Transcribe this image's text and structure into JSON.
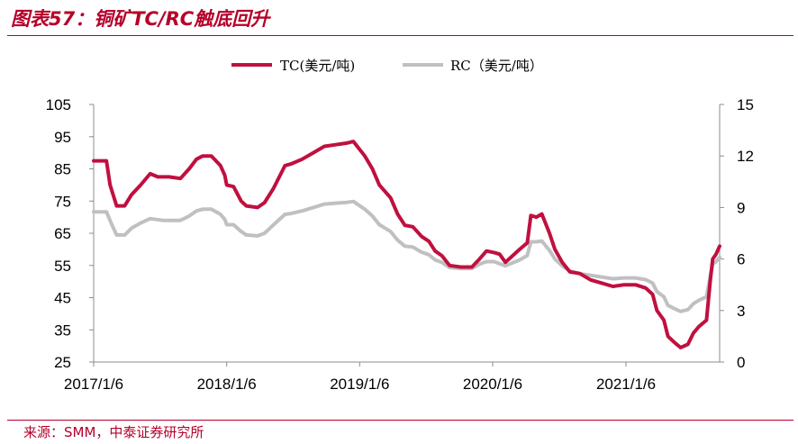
{
  "figure": {
    "title": "图表57：铜矿TC/RC触底回升",
    "source": "来源：SMM，中泰证券研究所"
  },
  "colors": {
    "tc": "#c0103f",
    "rc": "#c0c0c0",
    "accent": "#b5002a"
  },
  "chart_data": {
    "type": "line",
    "legend": {
      "placement": "top-center"
    },
    "grid": false,
    "x_tick_labels": [
      "2017/1/6",
      "2018/1/6",
      "2019/1/6",
      "2020/1/6",
      "2021/1/6"
    ],
    "x_range": [
      "2017-01-06",
      "2021-09-20"
    ],
    "y_left": {
      "range": [
        25,
        105
      ],
      "ticks": [
        105,
        95,
        85,
        75,
        65,
        55,
        45,
        35,
        25
      ]
    },
    "y_right": {
      "range": [
        0,
        15
      ],
      "ticks": [
        15,
        12,
        9,
        6,
        3,
        0
      ]
    },
    "series": [
      {
        "name": "TC(美元/吨)",
        "axis": "left",
        "points": [
          [
            "2017-01-06",
            87.5
          ],
          [
            "2017-02-10",
            87.5
          ],
          [
            "2017-02-20",
            80
          ],
          [
            "2017-03-10",
            73.5
          ],
          [
            "2017-04-01",
            73.5
          ],
          [
            "2017-04-20",
            77
          ],
          [
            "2017-05-15",
            80
          ],
          [
            "2017-06-10",
            83.5
          ],
          [
            "2017-07-01",
            82.5
          ],
          [
            "2017-08-01",
            82.5
          ],
          [
            "2017-09-01",
            82
          ],
          [
            "2017-09-25",
            85
          ],
          [
            "2017-10-15",
            88
          ],
          [
            "2017-11-01",
            89
          ],
          [
            "2017-11-25",
            89
          ],
          [
            "2017-12-20",
            86
          ],
          [
            "2018-01-01",
            83
          ],
          [
            "2018-01-06",
            80
          ],
          [
            "2018-01-25",
            79.5
          ],
          [
            "2018-02-15",
            75
          ],
          [
            "2018-03-01",
            73.5
          ],
          [
            "2018-04-01",
            73
          ],
          [
            "2018-04-20",
            74.5
          ],
          [
            "2018-05-15",
            79
          ],
          [
            "2018-06-15",
            86
          ],
          [
            "2018-07-01",
            86.5
          ],
          [
            "2018-08-01",
            88
          ],
          [
            "2018-09-01",
            90
          ],
          [
            "2018-10-01",
            92
          ],
          [
            "2018-11-01",
            92.5
          ],
          [
            "2018-12-01",
            93
          ],
          [
            "2018-12-20",
            93.5
          ],
          [
            "2019-01-20",
            89
          ],
          [
            "2019-02-10",
            85
          ],
          [
            "2019-03-01",
            80
          ],
          [
            "2019-04-01",
            76
          ],
          [
            "2019-04-20",
            71
          ],
          [
            "2019-05-10",
            67.5
          ],
          [
            "2019-06-01",
            67
          ],
          [
            "2019-06-25",
            64
          ],
          [
            "2019-07-15",
            62.5
          ],
          [
            "2019-08-01",
            59.5
          ],
          [
            "2019-08-20",
            58
          ],
          [
            "2019-09-10",
            55
          ],
          [
            "2019-10-10",
            54.5
          ],
          [
            "2019-11-10",
            54.5
          ],
          [
            "2019-12-01",
            57
          ],
          [
            "2019-12-20",
            59.5
          ],
          [
            "2020-01-10",
            59
          ],
          [
            "2020-01-25",
            58.5
          ],
          [
            "2020-02-10",
            56
          ],
          [
            "2020-02-25",
            57.5
          ],
          [
            "2020-03-20",
            60
          ],
          [
            "2020-04-10",
            62
          ],
          [
            "2020-04-20",
            70.5
          ],
          [
            "2020-05-05",
            70
          ],
          [
            "2020-05-20",
            71
          ],
          [
            "2020-06-10",
            65
          ],
          [
            "2020-06-25",
            60
          ],
          [
            "2020-07-15",
            56
          ],
          [
            "2020-08-05",
            53
          ],
          [
            "2020-09-01",
            52.5
          ],
          [
            "2020-10-01",
            50.5
          ],
          [
            "2020-11-01",
            49.5
          ],
          [
            "2020-12-01",
            48.5
          ],
          [
            "2021-01-01",
            49
          ],
          [
            "2021-02-01",
            49
          ],
          [
            "2021-03-01",
            48
          ],
          [
            "2021-03-20",
            46
          ],
          [
            "2021-04-01",
            41
          ],
          [
            "2021-04-20",
            38
          ],
          [
            "2021-05-01",
            33
          ],
          [
            "2021-05-20",
            31
          ],
          [
            "2021-06-05",
            29.5
          ],
          [
            "2021-06-25",
            30.5
          ],
          [
            "2021-07-10",
            34
          ],
          [
            "2021-07-25",
            36
          ],
          [
            "2021-08-15",
            38
          ],
          [
            "2021-08-25",
            50
          ],
          [
            "2021-09-01",
            57
          ],
          [
            "2021-09-10",
            58.5
          ],
          [
            "2021-09-20",
            61
          ]
        ]
      },
      {
        "name": "RC（美元/吨）",
        "axis": "right",
        "points": [
          [
            "2017-01-06",
            8.75
          ],
          [
            "2017-02-10",
            8.75
          ],
          [
            "2017-02-25",
            8.0
          ],
          [
            "2017-03-10",
            7.4
          ],
          [
            "2017-04-01",
            7.4
          ],
          [
            "2017-04-20",
            7.8
          ],
          [
            "2017-05-15",
            8.1
          ],
          [
            "2017-06-10",
            8.35
          ],
          [
            "2017-07-15",
            8.25
          ],
          [
            "2017-09-01",
            8.25
          ],
          [
            "2017-09-25",
            8.5
          ],
          [
            "2017-10-15",
            8.8
          ],
          [
            "2017-11-01",
            8.9
          ],
          [
            "2017-11-25",
            8.9
          ],
          [
            "2017-12-20",
            8.6
          ],
          [
            "2018-01-01",
            8.3
          ],
          [
            "2018-01-06",
            8.0
          ],
          [
            "2018-01-25",
            8.0
          ],
          [
            "2018-02-15",
            7.6
          ],
          [
            "2018-03-01",
            7.4
          ],
          [
            "2018-04-01",
            7.35
          ],
          [
            "2018-04-20",
            7.5
          ],
          [
            "2018-05-15",
            8.0
          ],
          [
            "2018-06-15",
            8.6
          ],
          [
            "2018-07-01",
            8.65
          ],
          [
            "2018-08-01",
            8.8
          ],
          [
            "2018-09-01",
            9.0
          ],
          [
            "2018-10-01",
            9.2
          ],
          [
            "2018-11-01",
            9.25
          ],
          [
            "2018-12-01",
            9.3
          ],
          [
            "2018-12-20",
            9.35
          ],
          [
            "2019-01-20",
            8.9
          ],
          [
            "2019-02-10",
            8.5
          ],
          [
            "2019-03-01",
            8.0
          ],
          [
            "2019-04-01",
            7.6
          ],
          [
            "2019-04-20",
            7.1
          ],
          [
            "2019-05-10",
            6.75
          ],
          [
            "2019-06-01",
            6.7
          ],
          [
            "2019-06-25",
            6.4
          ],
          [
            "2019-07-15",
            6.25
          ],
          [
            "2019-08-01",
            5.95
          ],
          [
            "2019-08-20",
            5.8
          ],
          [
            "2019-09-10",
            5.5
          ],
          [
            "2019-10-10",
            5.45
          ],
          [
            "2019-11-10",
            5.45
          ],
          [
            "2019-12-01",
            5.7
          ],
          [
            "2019-12-20",
            5.85
          ],
          [
            "2020-01-10",
            5.85
          ],
          [
            "2020-02-10",
            5.6
          ],
          [
            "2020-03-20",
            5.95
          ],
          [
            "2020-04-10",
            6.2
          ],
          [
            "2020-04-20",
            7.0
          ],
          [
            "2020-05-05",
            7.0
          ],
          [
            "2020-05-20",
            7.05
          ],
          [
            "2020-06-10",
            6.5
          ],
          [
            "2020-06-25",
            6.0
          ],
          [
            "2020-07-15",
            5.6
          ],
          [
            "2020-08-05",
            5.3
          ],
          [
            "2020-09-01",
            5.15
          ],
          [
            "2020-10-01",
            5.05
          ],
          [
            "2020-11-01",
            4.95
          ],
          [
            "2020-12-01",
            4.85
          ],
          [
            "2021-01-01",
            4.9
          ],
          [
            "2021-02-01",
            4.9
          ],
          [
            "2021-03-01",
            4.8
          ],
          [
            "2021-03-20",
            4.6
          ],
          [
            "2021-04-01",
            4.1
          ],
          [
            "2021-04-20",
            3.8
          ],
          [
            "2021-05-01",
            3.3
          ],
          [
            "2021-05-20",
            3.1
          ],
          [
            "2021-06-05",
            2.95
          ],
          [
            "2021-06-25",
            3.05
          ],
          [
            "2021-07-10",
            3.4
          ],
          [
            "2021-07-25",
            3.6
          ],
          [
            "2021-08-15",
            3.8
          ],
          [
            "2021-08-25",
            5.0
          ],
          [
            "2021-09-01",
            5.7
          ],
          [
            "2021-09-10",
            5.85
          ],
          [
            "2021-09-20",
            6.1
          ]
        ]
      }
    ]
  }
}
